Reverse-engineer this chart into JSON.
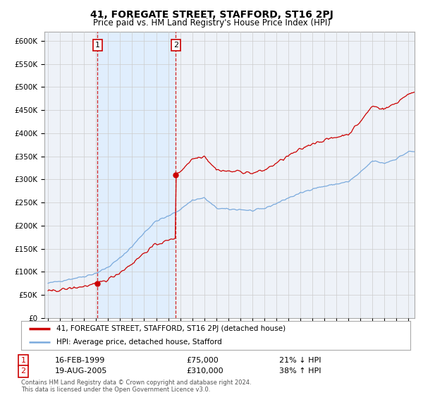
{
  "title": "41, FOREGATE STREET, STAFFORD, ST16 2PJ",
  "subtitle": "Price paid vs. HM Land Registry's House Price Index (HPI)",
  "legend_line1": "41, FOREGATE STREET, STAFFORD, ST16 2PJ (detached house)",
  "legend_line2": "HPI: Average price, detached house, Stafford",
  "sale1_label": "1",
  "sale1_date": "16-FEB-1999",
  "sale1_price": "£75,000",
  "sale1_hpi": "21% ↓ HPI",
  "sale2_label": "2",
  "sale2_date": "19-AUG-2005",
  "sale2_price": "£310,000",
  "sale2_hpi": "38% ↑ HPI",
  "footnote": "Contains HM Land Registry data © Crown copyright and database right 2024.\nThis data is licensed under the Open Government Licence v3.0.",
  "ylabel_ticks": [
    "£0",
    "£50K",
    "£100K",
    "£150K",
    "£200K",
    "£250K",
    "£300K",
    "£350K",
    "£400K",
    "£450K",
    "£500K",
    "£550K",
    "£600K"
  ],
  "ytick_values": [
    0,
    50000,
    100000,
    150000,
    200000,
    250000,
    300000,
    350000,
    400000,
    450000,
    500000,
    550000,
    600000
  ],
  "ylim": [
    0,
    620000
  ],
  "xlim_start": 1994.7,
  "xlim_end": 2025.5,
  "sale1_x": 1999.12,
  "sale1_y": 75000,
  "sale2_x": 2005.64,
  "sale2_y": 310000,
  "vline1_x": 1999.12,
  "vline2_x": 2005.64,
  "red_color": "#cc0000",
  "blue_color": "#7aaadd",
  "shade_color": "#ddeeff",
  "bg_color": "#ffffff",
  "grid_color": "#cccccc",
  "plot_bg": "#eef2f8"
}
